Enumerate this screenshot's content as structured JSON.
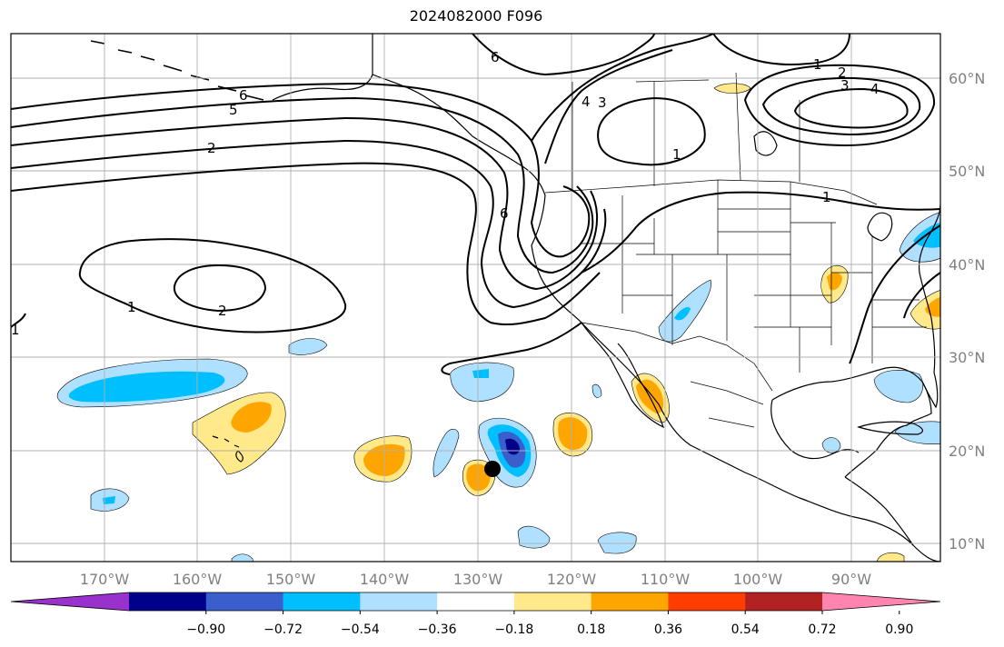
{
  "title": "2024082000 F096",
  "map": {
    "lon_labels": [
      "170°W",
      "160°W",
      "150°W",
      "140°W",
      "130°W",
      "120°W",
      "110°W",
      "100°W",
      "90°W"
    ],
    "lat_labels": [
      "60°N",
      "50°N",
      "40°N",
      "30°N",
      "20°N",
      "10°N"
    ],
    "contour_levels_shown": [
      "1",
      "2",
      "3",
      "4",
      "5",
      "6"
    ],
    "marker": "storm-position-dot"
  },
  "colorbar": {
    "ticks": [
      "−0.90",
      "−0.72",
      "−0.54",
      "−0.36",
      "−0.18",
      "0.18",
      "0.36",
      "0.54",
      "0.72",
      "0.90"
    ],
    "colors": [
      "#9932cc",
      "#00008b",
      "#3a5fcd",
      "#00bfff",
      "#afe0ff",
      "#ffffff",
      "#ffe98a",
      "#ffa500",
      "#ff3d00",
      "#b22222",
      "#ff85b0"
    ]
  },
  "colors": {
    "land_outline": "#000000",
    "grid": "#b0b0b0",
    "contour": "#000000"
  }
}
